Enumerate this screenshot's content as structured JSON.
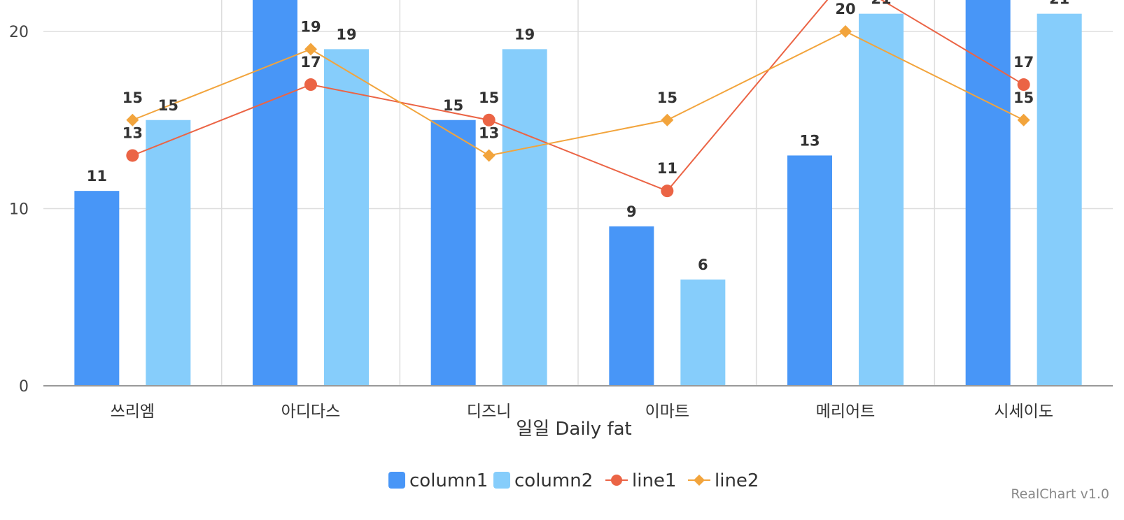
{
  "chart_data": {
    "type": "bar",
    "categories": [
      "쓰리엠",
      "아디다스",
      "디즈니",
      "이마트",
      "메리어트",
      "시세이도"
    ],
    "series": [
      {
        "name": "column1",
        "type": "bar",
        "color": "#4896f7",
        "values": [
          11,
          23,
          15,
          9,
          13,
          23
        ]
      },
      {
        "name": "column2",
        "type": "bar",
        "color": "#86cdfb",
        "values": [
          15,
          19,
          19,
          6,
          21,
          21
        ]
      },
      {
        "name": "line1",
        "type": "line",
        "marker": "circle",
        "color": "#eb6445",
        "values": [
          13,
          17,
          15,
          11,
          23,
          17
        ]
      },
      {
        "name": "line2",
        "type": "line",
        "marker": "diamond",
        "color": "#f2a43c",
        "values": [
          15,
          19,
          13,
          15,
          20,
          15
        ]
      }
    ],
    "xlabel": "일일 Daily fat",
    "ylabel": "",
    "ylim": [
      0,
      22
    ],
    "yticks": [
      0,
      10,
      20
    ],
    "grid": true,
    "legend_position": "bottom-center"
  },
  "credit": "RealChart v1.0"
}
